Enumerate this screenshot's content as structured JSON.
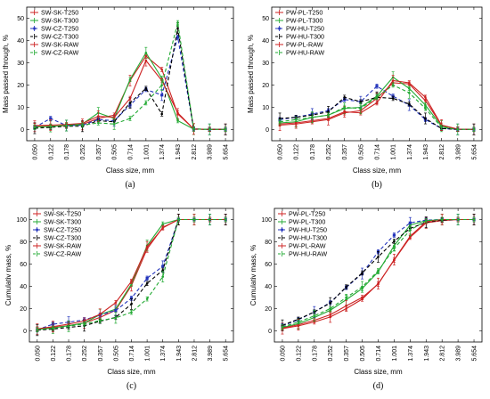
{
  "figure": {
    "captions": [
      "(a)",
      "(b)",
      "(c)",
      "(d)"
    ]
  },
  "chart_data": [
    {
      "type": "line",
      "panel": "a",
      "caption": "(a)",
      "xlabel": "Class size, mm",
      "ylabel": "Mass passed through, %",
      "categories": [
        "0.050",
        "0.122",
        "0.178",
        "0.252",
        "0.357",
        "0.505",
        "0.714",
        "1.001",
        "1.374",
        "1.943",
        "2.812",
        "3.989",
        "5.654"
      ],
      "ylim": [
        -5,
        55
      ],
      "yticks": [
        0,
        10,
        20,
        30,
        40,
        50
      ],
      "grid": false,
      "legend_position": "top-left",
      "series": [
        {
          "name": "SW-SK-T250",
          "color": "#cc2222",
          "dash": "solid",
          "marker": "plus",
          "values": [
            1.5,
            1.6,
            1.7,
            2.3,
            5.0,
            6.5,
            22.0,
            33.0,
            27.0,
            7.0,
            0.3,
            0.1,
            0.1
          ]
        },
        {
          "name": "SW-SK-T300",
          "color": "#22aa33",
          "dash": "solid",
          "marker": "plus",
          "values": [
            1.2,
            1.4,
            2.0,
            2.5,
            7.5,
            5.0,
            22.5,
            34.5,
            23.0,
            4.0,
            0.2,
            0.1,
            0.1
          ]
        },
        {
          "name": "SW-CZ-T250",
          "color": "#2233bb",
          "dash": "dashed",
          "marker": "square",
          "values": [
            1.0,
            5.0,
            1.8,
            2.0,
            4.5,
            4.0,
            11.0,
            18.0,
            15.5,
            41.5,
            0.3,
            0.1,
            0.1
          ]
        },
        {
          "name": "SW-CZ-T300",
          "color": "#000000",
          "dash": "dashed",
          "marker": "plus",
          "values": [
            0.6,
            1.0,
            1.5,
            1.5,
            4.0,
            3.5,
            12.0,
            18.5,
            7.0,
            45.5,
            0.2,
            0.1,
            0.1
          ]
        },
        {
          "name": "SW-SK-RAW",
          "color": "#cc2222",
          "dash": "solid",
          "marker": "plus",
          "values": [
            1.8,
            2.0,
            2.3,
            2.8,
            6.0,
            5.5,
            14.0,
            31.0,
            22.0,
            7.5,
            0.3,
            0.1,
            0.1
          ]
        },
        {
          "name": "SW-CZ-RAW",
          "color": "#22aa33",
          "dash": "dashed",
          "marker": "plus",
          "values": [
            1.0,
            1.4,
            1.8,
            2.0,
            3.0,
            2.5,
            5.0,
            12.0,
            20.0,
            48.0,
            0.3,
            0.1,
            0.1
          ]
        }
      ]
    },
    {
      "type": "line",
      "panel": "b",
      "caption": "(b)",
      "xlabel": "Class size, mm",
      "ylabel": "Mass passed through, %",
      "categories": [
        "0.050",
        "0.122",
        "0.178",
        "0.252",
        "0.357",
        "0.505",
        "0.714",
        "1.001",
        "1.374",
        "1.943",
        "2.812",
        "3.989",
        "5.654"
      ],
      "ylim": [
        -5,
        55
      ],
      "yticks": [
        0,
        10,
        20,
        30,
        40,
        50
      ],
      "grid": false,
      "legend_position": "top-left",
      "series": [
        {
          "name": "PW-PL-T250",
          "color": "#cc2222",
          "dash": "solid",
          "marker": "plus",
          "values": [
            2.0,
            2.5,
            3.5,
            4.5,
            7.5,
            8.5,
            14.0,
            21.0,
            20.5,
            13.0,
            2.0,
            0.2,
            0.1
          ]
        },
        {
          "name": "PW-PL-T300",
          "color": "#22aa33",
          "dash": "solid",
          "marker": "plus",
          "values": [
            3.0,
            3.5,
            5.5,
            6.5,
            9.5,
            10.0,
            15.0,
            23.5,
            18.5,
            11.0,
            1.5,
            0.2,
            0.1
          ]
        },
        {
          "name": "PW-HU-T250",
          "color": "#2233bb",
          "dash": "dashed",
          "marker": "square",
          "values": [
            4.5,
            5.5,
            7.0,
            8.5,
            13.5,
            12.5,
            19.5,
            15.0,
            11.0,
            4.5,
            0.5,
            0.1,
            0.1
          ]
        },
        {
          "name": "PW-HU-T300",
          "color": "#000000",
          "dash": "dashed",
          "marker": "plus",
          "values": [
            5.0,
            5.5,
            6.5,
            8.0,
            14.5,
            12.5,
            14.5,
            14.0,
            11.5,
            5.0,
            0.5,
            0.1,
            0.1
          ]
        },
        {
          "name": "PW-PL-RAW",
          "color": "#cc2222",
          "dash": "solid",
          "marker": "plus",
          "values": [
            2.5,
            3.0,
            4.0,
            5.0,
            8.0,
            7.5,
            12.0,
            22.0,
            21.0,
            14.5,
            2.0,
            0.2,
            0.1
          ]
        },
        {
          "name": "PW-HU-RAW",
          "color": "#22aa33",
          "dash": "dashed",
          "marker": "plus",
          "values": [
            3.5,
            4.5,
            5.5,
            6.5,
            10.0,
            9.5,
            14.5,
            20.0,
            16.5,
            9.5,
            1.0,
            0.1,
            0.1
          ]
        }
      ]
    },
    {
      "type": "line",
      "panel": "c",
      "caption": "(c)",
      "xlabel": "Class size, mm",
      "ylabel": "Cumulativ mass, %",
      "categories": [
        "0.050",
        "0.122",
        "0.178",
        "0.252",
        "0.357",
        "0.505",
        "0.714",
        "1.001",
        "1.374",
        "1.943",
        "2.812",
        "3.989",
        "5.654"
      ],
      "ylim": [
        -10,
        110
      ],
      "yticks": [
        0,
        20,
        40,
        60,
        80,
        100
      ],
      "grid": false,
      "legend_position": "top-left",
      "series": [
        {
          "name": "SW-SK-T250",
          "color": "#cc2222",
          "dash": "solid",
          "marker": "plus",
          "values": [
            1.5,
            3.1,
            4.8,
            7.1,
            12.1,
            18.6,
            40.6,
            73.6,
            93.0,
            100,
            100,
            100,
            100
          ]
        },
        {
          "name": "SW-SK-T300",
          "color": "#22aa33",
          "dash": "solid",
          "marker": "plus",
          "values": [
            1.2,
            2.6,
            4.6,
            7.1,
            14.6,
            19.6,
            42.1,
            76.6,
            96.0,
            100,
            100,
            100,
            100
          ]
        },
        {
          "name": "SW-CZ-T250",
          "color": "#2233bb",
          "dash": "dashed",
          "marker": "square",
          "values": [
            1.0,
            6.0,
            7.8,
            9.8,
            14.3,
            18.3,
            29.3,
            47.3,
            58.0,
            100,
            100,
            100,
            100
          ]
        },
        {
          "name": "SW-CZ-T300",
          "color": "#000000",
          "dash": "dashed",
          "marker": "plus",
          "values": [
            0.6,
            1.6,
            3.1,
            4.6,
            8.6,
            12.1,
            24.1,
            42.6,
            54.5,
            100,
            100,
            100,
            100
          ]
        },
        {
          "name": "SW-SK-RAW",
          "color": "#cc2222",
          "dash": "solid",
          "marker": "plus",
          "values": [
            1.8,
            3.8,
            6.1,
            8.9,
            14.9,
            25.4,
            44.4,
            75.4,
            92.5,
            100,
            100,
            100,
            100
          ]
        },
        {
          "name": "SW-CZ-RAW",
          "color": "#22aa33",
          "dash": "dashed",
          "marker": "plus",
          "values": [
            1.0,
            2.4,
            4.2,
            6.2,
            9.2,
            11.7,
            16.7,
            28.7,
            48.7,
            100,
            100,
            100,
            100
          ]
        }
      ]
    },
    {
      "type": "line",
      "panel": "d",
      "caption": "(d)",
      "xlabel": "Class size, mm",
      "ylabel": "Cumulativ mass, %",
      "categories": [
        "0.050",
        "0.122",
        "0.178",
        "0.252",
        "0.357",
        "0.505",
        "0.714",
        "1.001",
        "1.374",
        "1.943",
        "2.812",
        "3.989",
        "5.654"
      ],
      "ylim": [
        -10,
        110
      ],
      "yticks": [
        0,
        20,
        40,
        60,
        80,
        100
      ],
      "grid": false,
      "legend_position": "top-left",
      "series": [
        {
          "name": "PW-PL-T250",
          "color": "#cc2222",
          "dash": "solid",
          "marker": "plus",
          "values": [
            2.0,
            4.5,
            8.0,
            12.5,
            20.0,
            28.5,
            42.5,
            63.5,
            84.0,
            97.0,
            99.0,
            100,
            100
          ]
        },
        {
          "name": "PW-PL-T300",
          "color": "#22aa33",
          "dash": "solid",
          "marker": "plus",
          "values": [
            3.0,
            6.5,
            12.0,
            18.5,
            28.0,
            38.0,
            53.0,
            76.5,
            95.0,
            99.0,
            100,
            100,
            100
          ]
        },
        {
          "name": "PW-HU-T250",
          "color": "#2233bb",
          "dash": "dashed",
          "marker": "square",
          "values": [
            4.5,
            10.0,
            17.0,
            25.5,
            39.0,
            51.5,
            71.0,
            86.0,
            97.0,
            99.5,
            100,
            100,
            100
          ]
        },
        {
          "name": "PW-HU-T300",
          "color": "#000000",
          "dash": "dashed",
          "marker": "plus",
          "values": [
            5.0,
            10.5,
            17.0,
            25.0,
            39.5,
            52.0,
            66.5,
            80.5,
            92.0,
            97.5,
            99.5,
            100,
            100
          ]
        },
        {
          "name": "PW-PL-RAW",
          "color": "#cc2222",
          "dash": "solid",
          "marker": "plus",
          "values": [
            2.5,
            5.5,
            9.5,
            14.5,
            22.5,
            30.0,
            42.0,
            64.0,
            85.0,
            98.0,
            100,
            100,
            100
          ]
        },
        {
          "name": "PW-HU-RAW",
          "color": "#22aa33",
          "dash": "dashed",
          "marker": "plus",
          "values": [
            3.5,
            8.0,
            13.5,
            20.0,
            30.0,
            39.5,
            54.0,
            74.0,
            90.5,
            99.0,
            100,
            100,
            100
          ]
        }
      ]
    }
  ]
}
